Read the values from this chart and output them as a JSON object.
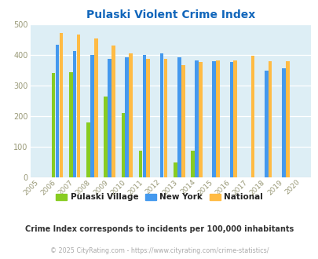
{
  "title": "Pulaski Violent Crime Index",
  "years": [
    2005,
    2006,
    2007,
    2008,
    2009,
    2010,
    2011,
    2012,
    2013,
    2014,
    2015,
    2016,
    2017,
    2018,
    2019,
    2020
  ],
  "pulaski": [
    null,
    341,
    345,
    180,
    265,
    210,
    88,
    null,
    48,
    88,
    null,
    null,
    null,
    null,
    null,
    null
  ],
  "new_york": [
    null,
    433,
    413,
    400,
    387,
    393,
    400,
    406,
    392,
    384,
    381,
    377,
    null,
    350,
    357,
    null
  ],
  "national": [
    null,
    473,
    467,
    455,
    432,
    405,
    387,
    387,
    367,
    377,
    383,
    384,
    399,
    381,
    380,
    null
  ],
  "pulaski_color": "#88cc22",
  "newyork_color": "#4499ee",
  "national_color": "#ffbb44",
  "bg_color": "#ddeef5",
  "title_color": "#1166bb",
  "ylabel_max": 500,
  "ylabel_min": 0,
  "ylabel_step": 100,
  "subtitle": "Crime Index corresponds to incidents per 100,000 inhabitants",
  "footer": "© 2025 CityRating.com - https://www.cityrating.com/crime-statistics/",
  "bar_width": 0.22,
  "bar_gap": 0.22
}
